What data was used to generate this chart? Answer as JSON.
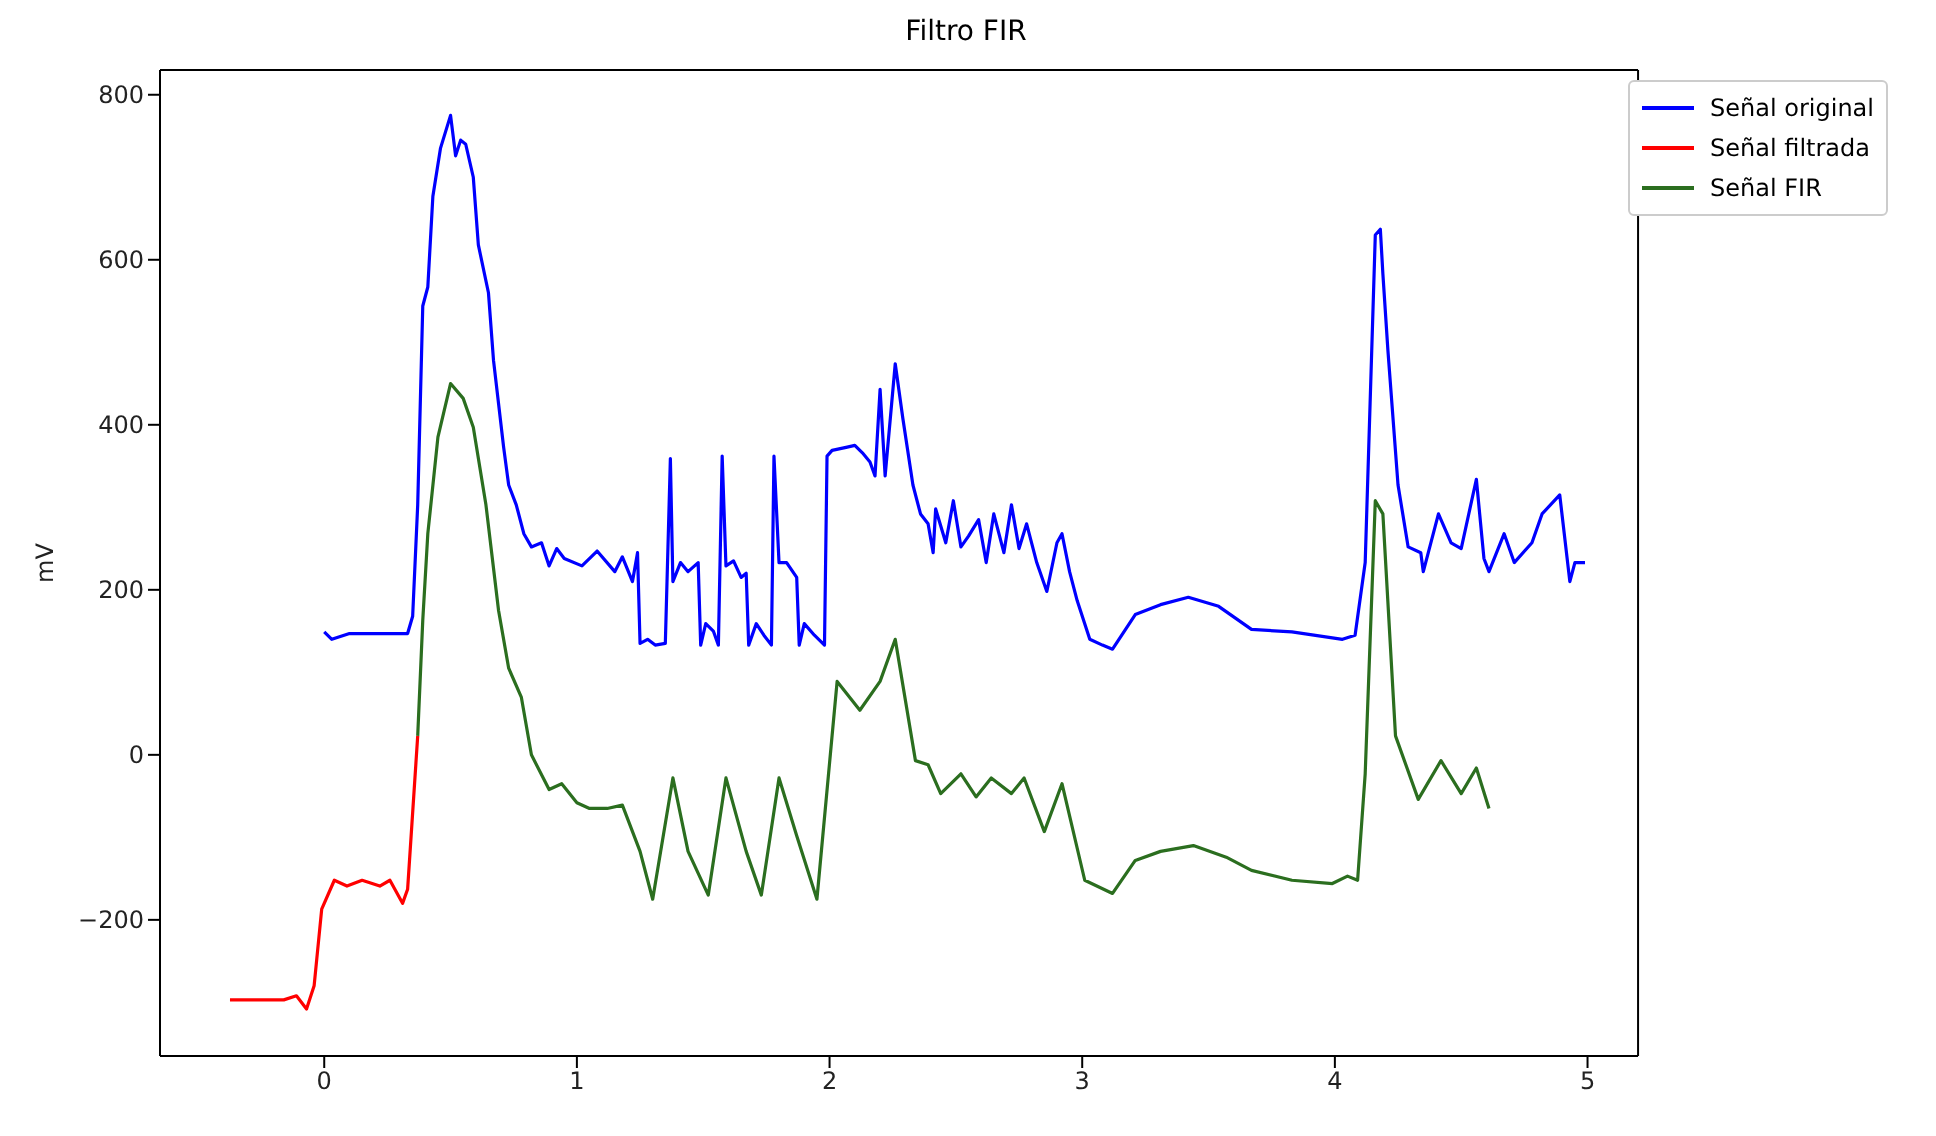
{
  "chart_data": {
    "type": "line",
    "title": "Filtro FIR",
    "ylabel": "mV",
    "xlim": [
      -0.65,
      5.2
    ],
    "xticks": [
      0,
      1,
      2,
      3,
      4,
      5
    ],
    "ylim": [
      -365,
      830
    ],
    "yticks": [
      {
        "value": -200,
        "label": "−200"
      },
      0,
      200,
      400,
      600,
      800
    ],
    "legend": "top right",
    "line_style": "solid",
    "marker": "none",
    "series": [
      {
        "name": "Señal original",
        "color": "#0000ff",
        "x": [
          0,
          0.03,
          0.1,
          0.33,
          0.35,
          0.37,
          0.39,
          0.41,
          0.43,
          0.46,
          0.5,
          0.52,
          0.54,
          0.56,
          0.59,
          0.61,
          0.65,
          0.67,
          0.71,
          0.73,
          0.76,
          0.79,
          0.82,
          0.86,
          0.89,
          0.92,
          0.95,
          1.02,
          1.08,
          1.15,
          1.18,
          1.22,
          1.24,
          1.25,
          1.28,
          1.31,
          1.35,
          1.37,
          1.38,
          1.41,
          1.44,
          1.48,
          1.49,
          1.51,
          1.54,
          1.56,
          1.575,
          1.59,
          1.62,
          1.65,
          1.67,
          1.68,
          1.71,
          1.74,
          1.77,
          1.78,
          1.8,
          1.83,
          1.87,
          1.88,
          1.9,
          1.94,
          1.98,
          1.99,
          2.01,
          2.07,
          2.1,
          2.13,
          2.16,
          2.18,
          2.2,
          2.22,
          2.26,
          2.29,
          2.33,
          2.36,
          2.39,
          2.41,
          2.42,
          2.46,
          2.49,
          2.52,
          2.55,
          2.59,
          2.62,
          2.65,
          2.69,
          2.72,
          2.75,
          2.78,
          2.82,
          2.86,
          2.9,
          2.92,
          2.95,
          2.98,
          3.03,
          3.08,
          3.12,
          3.21,
          3.31,
          3.42,
          3.54,
          3.67,
          3.83,
          4.03,
          4.08,
          4.12,
          4.16,
          4.18,
          4.19,
          4.21,
          4.25,
          4.29,
          4.34,
          4.35,
          4.41,
          4.46,
          4.5,
          4.56,
          4.59,
          4.61,
          4.67,
          4.71,
          4.78,
          4.82,
          4.89,
          4.93,
          4.95,
          4.99
        ],
        "values": [
          149,
          140,
          147,
          147,
          168,
          303,
          544,
          567,
          677,
          735,
          775,
          726,
          745,
          740,
          700,
          618,
          560,
          478,
          373,
          327,
          303,
          268,
          252,
          257,
          229,
          250,
          238,
          229,
          247,
          222,
          240,
          210,
          245,
          135,
          140,
          133,
          135,
          359,
          210,
          233,
          222,
          233,
          133,
          159,
          150,
          133,
          362,
          229,
          235,
          215,
          220,
          133,
          159,
          145,
          133,
          362,
          233,
          233,
          215,
          133,
          159,
          145,
          133,
          362,
          369,
          373,
          375,
          366,
          355,
          338,
          443,
          338,
          474,
          408,
          327,
          292,
          280,
          245,
          298,
          257,
          308,
          252,
          265,
          285,
          233,
          292,
          245,
          303,
          250,
          280,
          233,
          198,
          257,
          268,
          222,
          187,
          140,
          133,
          128,
          170,
          182,
          191,
          180,
          152,
          149,
          140,
          145,
          233,
          630,
          637,
          583,
          490,
          327,
          252,
          245,
          222,
          292,
          257,
          250,
          334,
          238,
          222,
          268,
          233,
          257,
          292,
          315,
          210,
          233,
          233
        ]
      },
      {
        "name": "Señal filtrada",
        "color": "#ff0000",
        "x": [
          -0.373,
          -0.16,
          -0.11,
          -0.07,
          -0.04,
          -0.01,
          0.04,
          0.09,
          0.15,
          0.22,
          0.26,
          0.31,
          0.33,
          0.37
        ],
        "values": [
          -297,
          -297,
          -292,
          -308,
          -280,
          -187,
          -152,
          -159,
          -152,
          -159,
          -152,
          -180,
          -163,
          23
        ]
      },
      {
        "name": "Señal FIR",
        "color": "#2b6e1f",
        "x": [
          0.37,
          0.39,
          0.41,
          0.45,
          0.5,
          0.55,
          0.59,
          0.64,
          0.69,
          0.73,
          0.78,
          0.82,
          0.89,
          0.94,
          1.0,
          1.05,
          1.12,
          1.18,
          1.25,
          1.3,
          1.38,
          1.44,
          1.52,
          1.59,
          1.67,
          1.73,
          1.8,
          1.87,
          1.95,
          2.03,
          2.12,
          2.2,
          2.26,
          2.34,
          2.39,
          2.44,
          2.52,
          2.58,
          2.64,
          2.72,
          2.77,
          2.85,
          2.92,
          3.01,
          3.12,
          3.21,
          3.31,
          3.44,
          3.57,
          3.67,
          3.83,
          3.99,
          4.05,
          4.09,
          4.12,
          4.16,
          4.19,
          4.24,
          4.33,
          4.42,
          4.5,
          4.56,
          4.61
        ],
        "values": [
          23,
          163,
          268,
          385,
          450,
          432,
          397,
          303,
          175,
          105,
          70,
          0,
          -42,
          -35,
          -58,
          -65,
          -65,
          -61,
          -117,
          -175,
          -28,
          -117,
          -170,
          -28,
          -117,
          -170,
          -28,
          -98,
          -175,
          89,
          54,
          89,
          140,
          -7,
          -12,
          -47,
          -23,
          -51,
          -28,
          -47,
          -28,
          -93,
          -35,
          -152,
          -168,
          -128,
          -117,
          -110,
          -124,
          -140,
          -152,
          -156,
          -147,
          -152,
          -23,
          308,
          292,
          23,
          -54,
          -7,
          -47,
          -16,
          -65
        ]
      }
    ]
  }
}
